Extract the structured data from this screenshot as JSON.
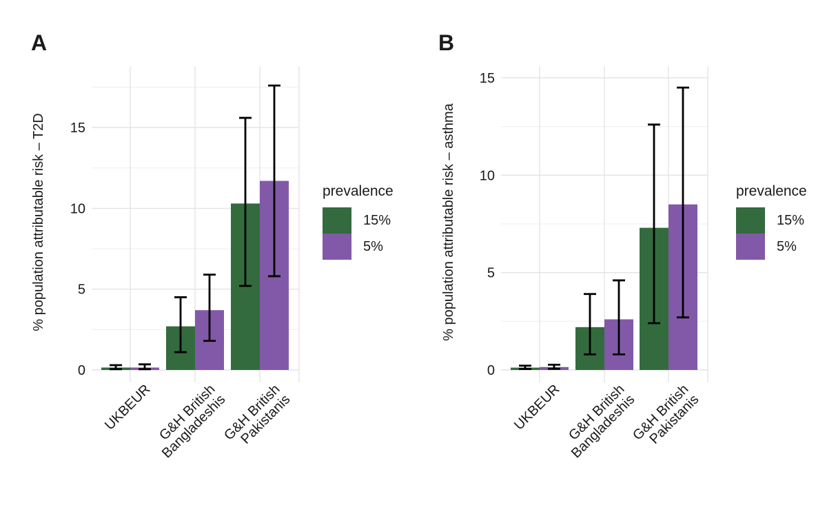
{
  "figure": {
    "panel_a_label": "A",
    "panel_b_label": "B"
  },
  "legend": {
    "title": "prevalence",
    "items": [
      {
        "label": "15%",
        "color": "#336b3e"
      },
      {
        "label": "5%",
        "color": "#8259a8"
      }
    ]
  },
  "chart_data": [
    {
      "type": "bar",
      "panel": "A",
      "ylabel": "% population attributable risk – T2D",
      "categories": [
        "UKBEUR",
        "G&H British\nBangladeshis",
        "G&H British\nPakistanis"
      ],
      "yticks": [
        0,
        5,
        10,
        15
      ],
      "minor_grid_step": 2.5,
      "ylim": [
        0,
        18.8
      ],
      "grid": true,
      "legend_position": "right",
      "error_bar_color": "#000000",
      "series": [
        {
          "name": "15%",
          "values": [
            0.15,
            2.7,
            10.3
          ],
          "ci_low": [
            0.05,
            1.1,
            5.2
          ],
          "ci_high": [
            0.3,
            4.5,
            15.6
          ]
        },
        {
          "name": "5%",
          "values": [
            0.15,
            3.7,
            11.7
          ],
          "ci_low": [
            0.05,
            1.8,
            5.8
          ],
          "ci_high": [
            0.35,
            5.9,
            17.6
          ]
        }
      ]
    },
    {
      "type": "bar",
      "panel": "B",
      "ylabel": "% population attributable risk – asthma",
      "categories": [
        "UKBEUR",
        "G&H British\nBangladeshis",
        "G&H British\nPakistanis"
      ],
      "yticks": [
        0,
        5,
        10,
        15
      ],
      "minor_grid_step": 2.5,
      "ylim": [
        0,
        15.6
      ],
      "grid": true,
      "legend_position": "right",
      "error_bar_color": "#000000",
      "series": [
        {
          "name": "15%",
          "values": [
            0.12,
            2.2,
            7.3
          ],
          "ci_low": [
            0.05,
            0.8,
            2.4
          ],
          "ci_high": [
            0.22,
            3.9,
            12.6
          ]
        },
        {
          "name": "5%",
          "values": [
            0.15,
            2.6,
            8.5
          ],
          "ci_low": [
            0.06,
            0.8,
            2.7
          ],
          "ci_high": [
            0.27,
            4.6,
            14.5
          ]
        }
      ]
    }
  ]
}
